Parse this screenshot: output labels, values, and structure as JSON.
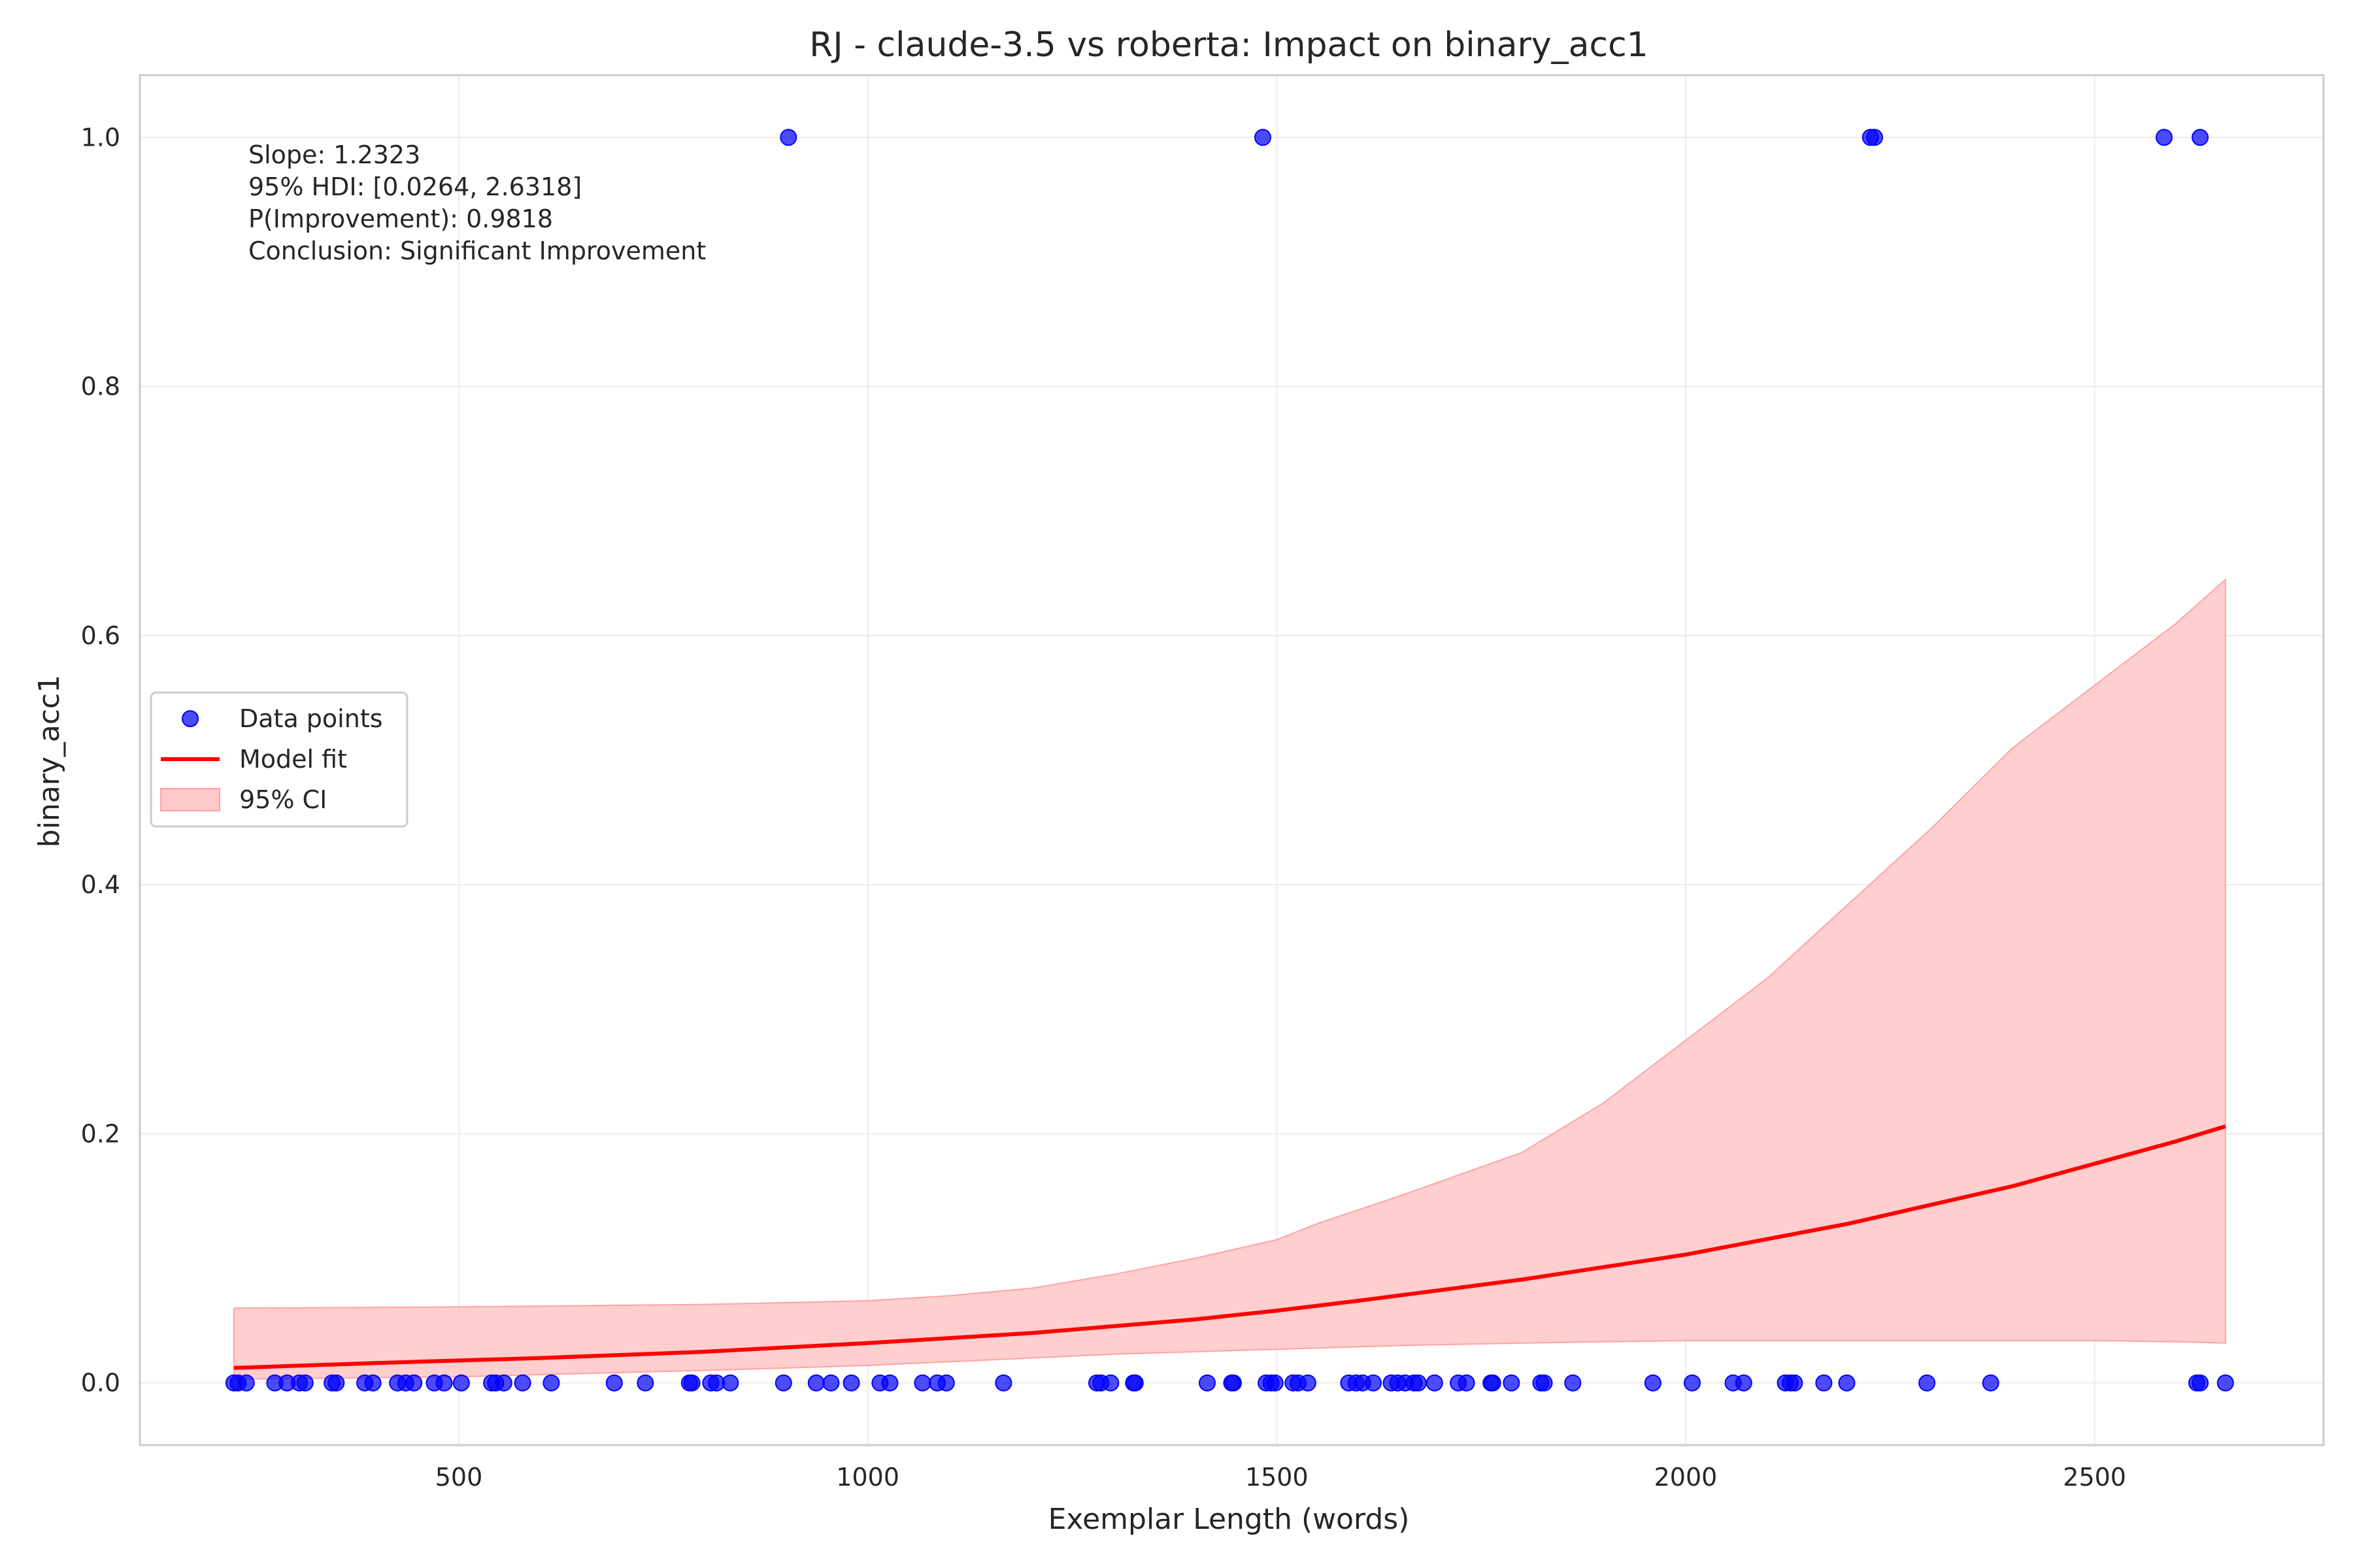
{
  "chart_data": {
    "type": "scatter",
    "title": "RJ - claude-3.5 vs roberta: Impact on binary_acc1",
    "xlabel": "Exemplar Length (words)",
    "ylabel": "binary_acc1",
    "xlim": [
      110,
      2780
    ],
    "ylim": [
      -0.05,
      1.05
    ],
    "xticks": [
      500,
      1000,
      1500,
      2000,
      2500
    ],
    "yticks": [
      0.0,
      0.2,
      0.4,
      0.6,
      0.8,
      1.0
    ],
    "grid": true,
    "legend_position": "center-left",
    "legend": [
      "Data points",
      "Model fit",
      "95% CI"
    ],
    "annotation": [
      "Slope: 1.2323",
      "95% HDI: [0.0264, 2.6318]",
      "P(Improvement): 0.9818",
      "Conclusion: Significant Improvement"
    ],
    "colors": {
      "points": "#0000ff",
      "fit": "#ff0000",
      "ci": "#ffc9c9",
      "ci_edge": "#ffa3a3",
      "grid": "#ebebeb",
      "axes": "#cccccc"
    },
    "series": [
      {
        "name": "Data points",
        "type": "scatter",
        "x": [
          903,
          1483,
          2226,
          2231,
          2585,
          2629,
          225,
          230,
          240,
          275,
          290,
          305,
          312,
          345,
          350,
          385,
          395,
          425,
          435,
          445,
          470,
          482,
          503,
          540,
          545,
          555,
          578,
          613,
          690,
          728,
          782,
          785,
          808,
          815,
          832,
          897,
          937,
          955,
          980,
          1015,
          1027,
          1067,
          1085,
          1096,
          1166,
          1280,
          1285,
          1297,
          1325,
          1327,
          1415,
          1445,
          1447,
          1487,
          1493,
          1498,
          1520,
          1526,
          1538,
          1588,
          1597,
          1605,
          1618,
          1640,
          1648,
          1657,
          1668,
          1673,
          1693,
          1722,
          1732,
          1762,
          1764,
          1787,
          1823,
          1827,
          1862,
          1960,
          2008,
          2058,
          2071,
          2122,
          2128,
          2133,
          2169,
          2197,
          2295,
          2373,
          2625,
          2629,
          2660
        ],
        "y": [
          1,
          1,
          1,
          1,
          1,
          1,
          0,
          0,
          0,
          0,
          0,
          0,
          0,
          0,
          0,
          0,
          0,
          0,
          0,
          0,
          0,
          0,
          0,
          0,
          0,
          0,
          0,
          0,
          0,
          0,
          0,
          0,
          0,
          0,
          0,
          0,
          0,
          0,
          0,
          0,
          0,
          0,
          0,
          0,
          0,
          0,
          0,
          0,
          0,
          0,
          0,
          0,
          0,
          0,
          0,
          0,
          0,
          0,
          0,
          0,
          0,
          0,
          0,
          0,
          0,
          0,
          0,
          0,
          0,
          0,
          0,
          0,
          0,
          0,
          0,
          0,
          0,
          0,
          0,
          0,
          0,
          0,
          0,
          0,
          0,
          0,
          0,
          0,
          0,
          0,
          0
        ]
      },
      {
        "name": "Model fit",
        "type": "line",
        "x": [
          225,
          400,
          600,
          800,
          1000,
          1200,
          1400,
          1500,
          1600,
          1800,
          2000,
          2200,
          2400,
          2500,
          2600,
          2660
        ],
        "y": [
          0.012,
          0.016,
          0.02,
          0.025,
          0.032,
          0.04,
          0.051,
          0.058,
          0.066,
          0.083,
          0.103,
          0.128,
          0.158,
          0.176,
          0.194,
          0.206
        ]
      },
      {
        "name": "95% CI",
        "type": "band",
        "x": [
          225,
          500,
          800,
          1000,
          1100,
          1200,
          1300,
          1400,
          1500,
          1550,
          1650,
          1800,
          1900,
          2000,
          2100,
          2200,
          2300,
          2400,
          2500,
          2600,
          2660
        ],
        "lower": [
          0.003,
          0.005,
          0.01,
          0.014,
          0.017,
          0.02,
          0.023,
          0.025,
          0.027,
          0.028,
          0.03,
          0.032,
          0.033,
          0.034,
          0.034,
          0.034,
          0.034,
          0.034,
          0.034,
          0.033,
          0.032
        ],
        "upper": [
          0.06,
          0.061,
          0.063,
          0.066,
          0.07,
          0.076,
          0.087,
          0.1,
          0.115,
          0.128,
          0.15,
          0.185,
          0.225,
          0.275,
          0.325,
          0.385,
          0.445,
          0.51,
          0.56,
          0.61,
          0.645
        ]
      }
    ]
  }
}
